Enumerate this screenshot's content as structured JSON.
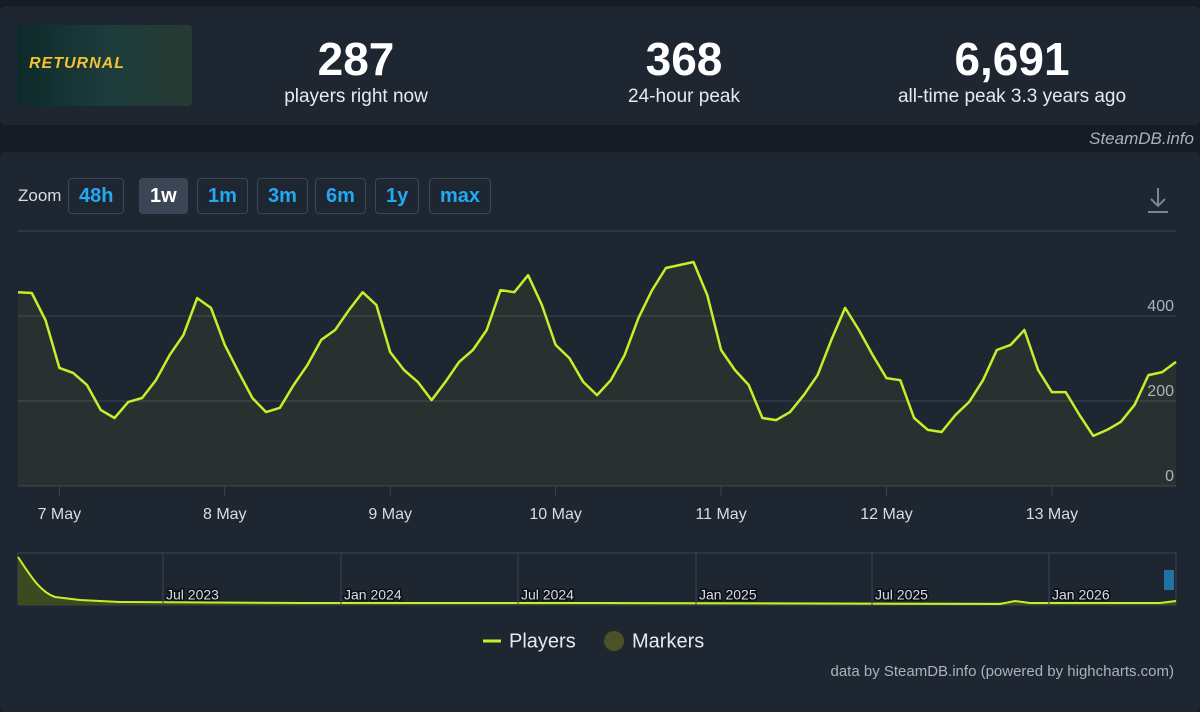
{
  "header": {
    "game_logo": "RETURNAL",
    "stats": [
      {
        "value": "287",
        "label": "players right now"
      },
      {
        "value": "368",
        "label": "24-hour peak"
      },
      {
        "value": "6,691",
        "label": "all-time peak 3.3 years ago"
      }
    ],
    "credit": "SteamDB.info"
  },
  "zoom": {
    "label": "Zoom",
    "buttons": [
      "48h",
      "1w",
      "1m",
      "3m",
      "6m",
      "1y",
      "max"
    ],
    "active": "1w"
  },
  "chart_data": {
    "type": "line",
    "categories": [
      null,
      null,
      null,
      "7 May",
      null,
      null,
      null,
      null,
      null,
      null,
      null,
      null,
      null,
      null,
      null,
      "8 May",
      null,
      null,
      null,
      null,
      null,
      null,
      null,
      null,
      null,
      null,
      null,
      "9 May",
      null,
      null,
      null,
      null,
      null,
      null,
      null,
      null,
      null,
      null,
      null,
      "10 May",
      null,
      null,
      null,
      null,
      null,
      null,
      null,
      null,
      null,
      null,
      null,
      "11 May",
      null,
      null,
      null,
      null,
      null,
      null,
      null,
      null,
      null,
      null,
      null,
      "12 May",
      null,
      null,
      null,
      null,
      null,
      null,
      null,
      null,
      null,
      null,
      null,
      "13 May",
      null,
      null,
      null,
      null,
      null,
      null,
      null,
      null,
      null
    ],
    "series": [
      {
        "name": "Players",
        "color": "#c4f02a",
        "values": [
          456,
          454,
          390,
          278,
          266,
          238,
          179,
          160,
          198,
          207,
          249,
          308,
          355,
          442,
          419,
          332,
          268,
          207,
          174,
          184,
          238,
          285,
          344,
          367,
          414,
          456,
          426,
          315,
          273,
          245,
          202,
          245,
          292,
          320,
          367,
          461,
          456,
          496,
          426,
          332,
          301,
          245,
          214,
          249,
          308,
          395,
          461,
          513,
          520,
          527,
          449,
          320,
          273,
          238,
          160,
          155,
          174,
          214,
          261,
          344,
          419,
          367,
          308,
          254,
          249,
          160,
          132,
          127,
          167,
          198,
          249,
          320,
          332,
          367,
          273,
          221,
          221,
          167,
          118,
          132,
          151,
          191,
          261,
          268,
          292
        ]
      }
    ],
    "ylim": [
      0,
      600
    ],
    "yticks": [
      0,
      200,
      400
    ],
    "grid": true
  },
  "legend": {
    "markers": "Markers"
  },
  "navigator": {
    "labels": [
      "Jul 2023",
      "Jan 2024",
      "Jul 2024",
      "Jan 2025",
      "Jul 2025",
      "Jan 2026"
    ]
  },
  "footer": "data by SteamDB.info (powered by highcharts.com)"
}
